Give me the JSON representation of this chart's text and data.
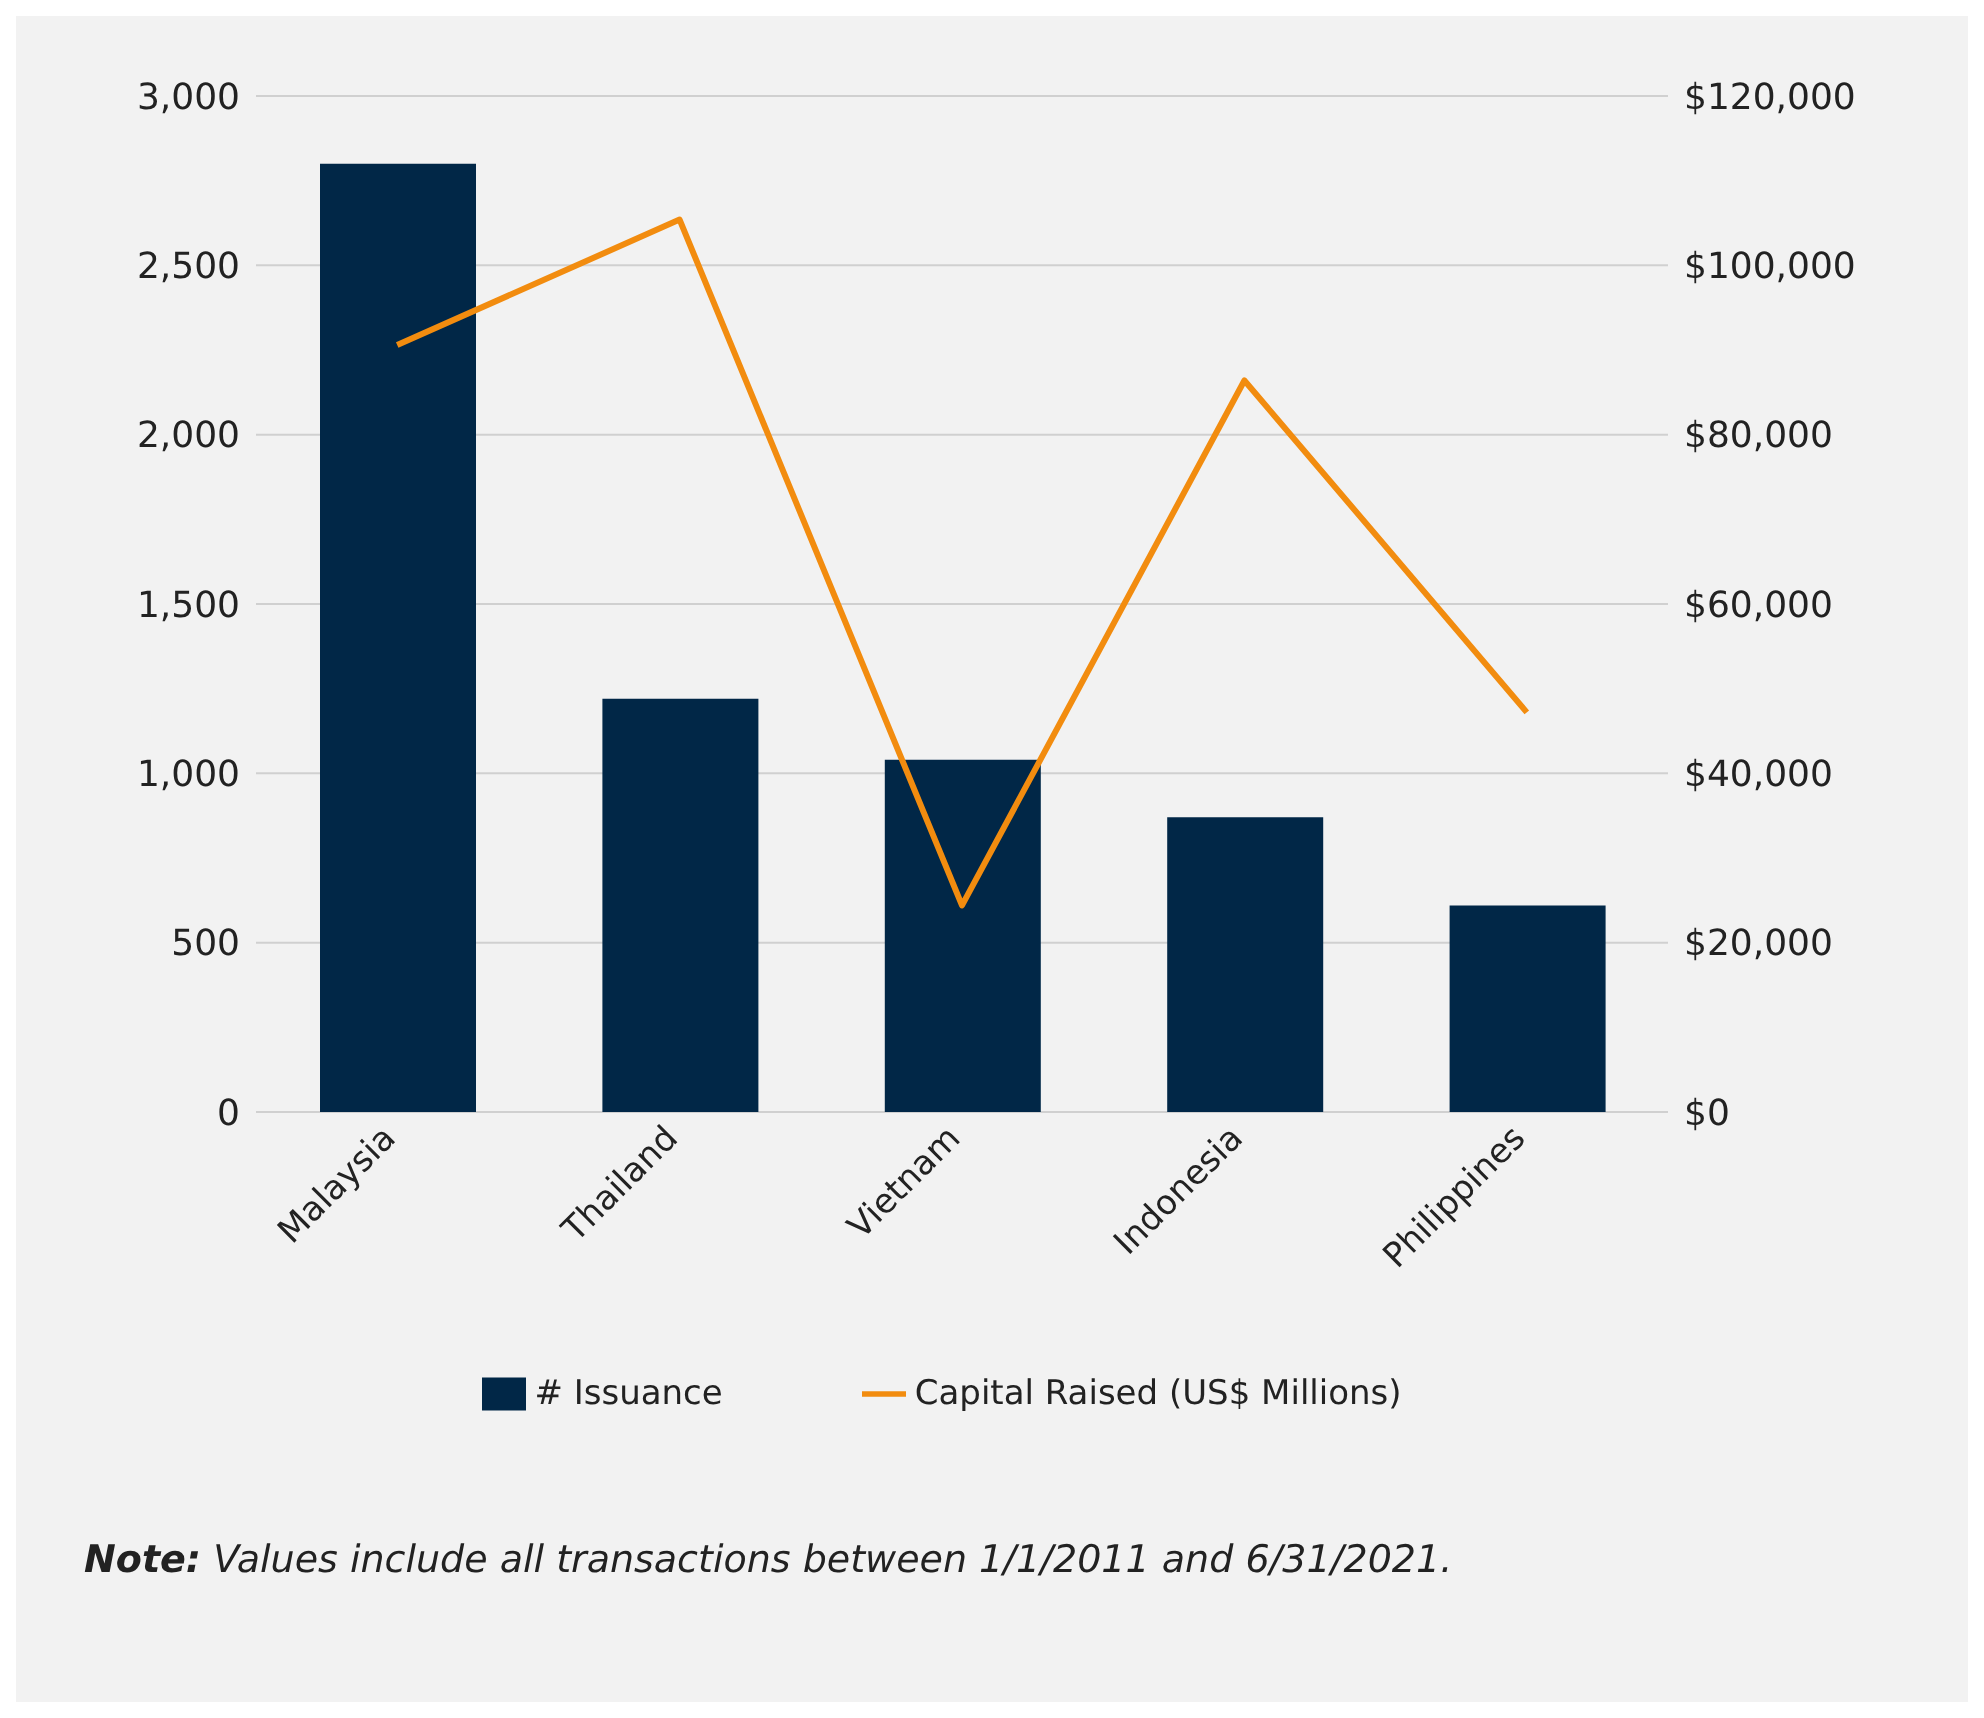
{
  "chart_data": {
    "type": "bar",
    "categories": [
      "Malaysia",
      "Thailand",
      "Vietnam",
      "Indonesia",
      "Philippines"
    ],
    "series": [
      {
        "name": "# Issuance",
        "color": "#012747",
        "values": [
          2800,
          1220,
          1040,
          870,
          610
        ]
      },
      {
        "name": "Capital Raised (US$ Millions)",
        "type": "line",
        "axis": "y2",
        "color": "#f28c0f",
        "values": [
          90600,
          105400,
          24400,
          86400,
          47200
        ]
      }
    ],
    "ylim": [
      0,
      3000
    ],
    "yticks": [
      {
        "value": 0,
        "label": "0"
      },
      {
        "value": 500,
        "label": "500"
      },
      {
        "value": 1000,
        "label": "1,000"
      },
      {
        "value": 1500,
        "label": "1,500"
      },
      {
        "value": 2000,
        "label": "2,000"
      },
      {
        "value": 2500,
        "label": "2,500"
      },
      {
        "value": 3000,
        "label": "3,000"
      }
    ],
    "y2lim": [
      0,
      120000
    ],
    "y2ticks": [
      {
        "value": 0,
        "label": "$0"
      },
      {
        "value": 20000,
        "label": "$20,000"
      },
      {
        "value": 40000,
        "label": "$40,000"
      },
      {
        "value": 60000,
        "label": "$60,000"
      },
      {
        "value": 80000,
        "label": "$80,000"
      },
      {
        "value": 100000,
        "label": "$100,000"
      },
      {
        "value": 120000,
        "label": "$120,000"
      }
    ],
    "grid": "y",
    "legend": "bottom",
    "marker": "none",
    "annotations": [
      "Note: Values include all transactions between 1/1/2011 and 6/31/2021."
    ]
  }
}
